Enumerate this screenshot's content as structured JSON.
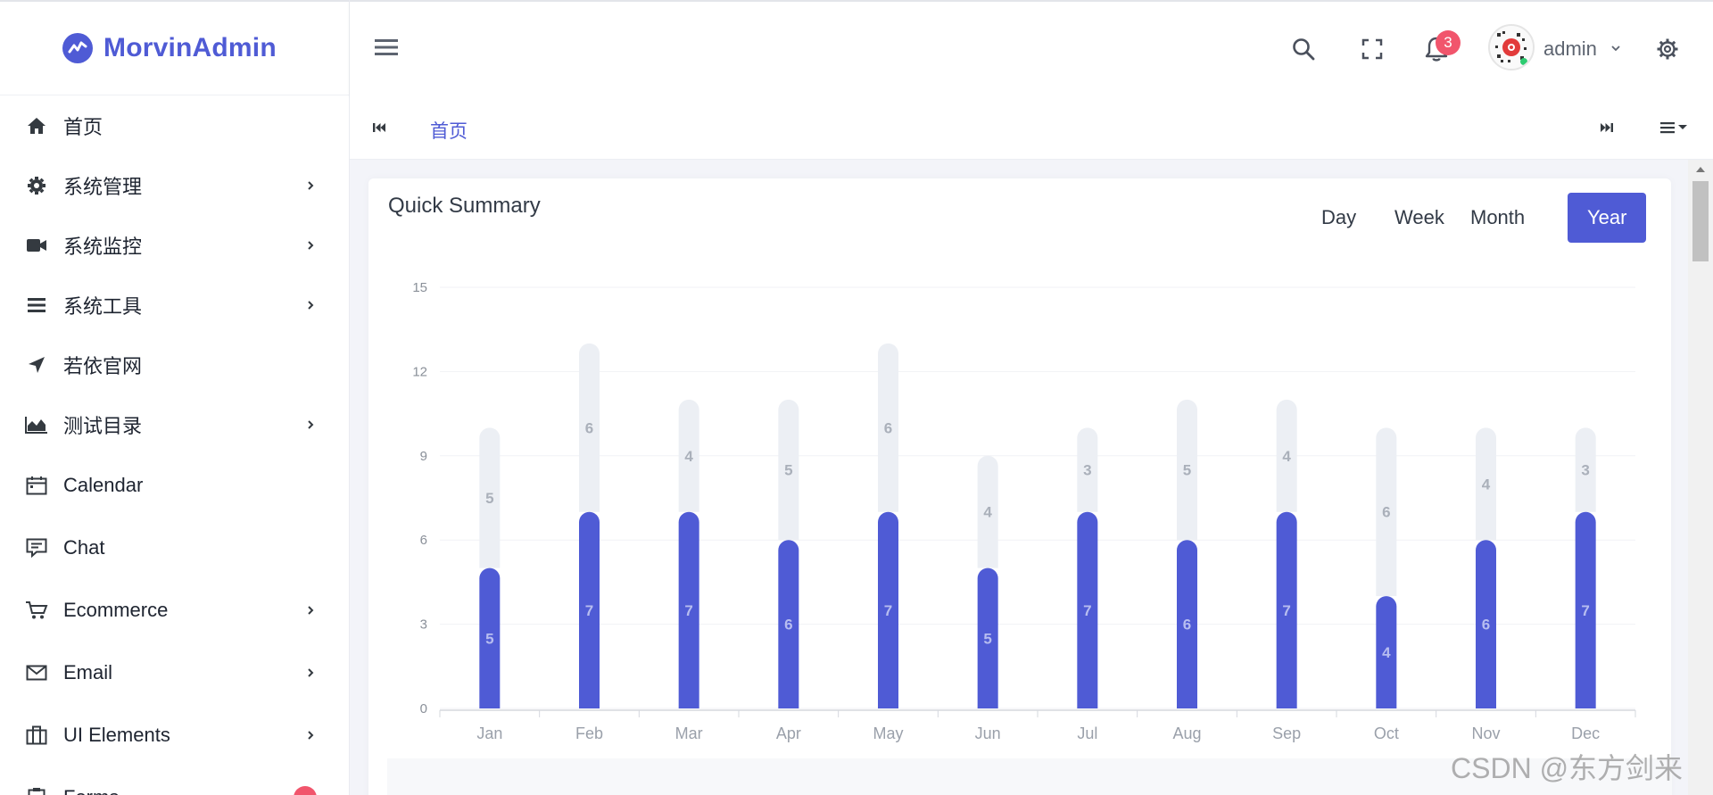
{
  "brand": {
    "name": "MorvinAdmin",
    "color": "#4f5bd5"
  },
  "sidebar": {
    "items": [
      {
        "label": "首页",
        "icon": "home-icon",
        "has_children": false
      },
      {
        "label": "系统管理",
        "icon": "gear-icon",
        "has_children": true
      },
      {
        "label": "系统监控",
        "icon": "video-camera-icon",
        "has_children": true
      },
      {
        "label": "系统工具",
        "icon": "bars-icon",
        "has_children": true
      },
      {
        "label": "若依官网",
        "icon": "location-arrow-icon",
        "has_children": false
      },
      {
        "label": "测试目录",
        "icon": "area-chart-icon",
        "has_children": true
      },
      {
        "label": "Calendar",
        "icon": "calendar-icon",
        "has_children": false
      },
      {
        "label": "Chat",
        "icon": "chat-icon",
        "has_children": false
      },
      {
        "label": "Ecommerce",
        "icon": "cart-icon",
        "has_children": true
      },
      {
        "label": "Email",
        "icon": "mail-icon",
        "has_children": true
      },
      {
        "label": "UI Elements",
        "icon": "briefcase-icon",
        "has_children": true
      },
      {
        "label": "Forms",
        "icon": "clipboard-icon",
        "has_children": false
      }
    ]
  },
  "topbar": {
    "notification_count": "3",
    "user_name": "admin"
  },
  "tabs": {
    "items": [
      {
        "label": "首页",
        "active": true
      }
    ]
  },
  "card": {
    "title": "Quick Summary",
    "periods": [
      "Day",
      "Week",
      "Month",
      "Year"
    ],
    "active_period": "Year"
  },
  "chart_data": {
    "type": "bar",
    "stacked": true,
    "categories": [
      "Jan",
      "Feb",
      "Mar",
      "Apr",
      "May",
      "Jun",
      "Jul",
      "Aug",
      "Sep",
      "Oct",
      "Nov",
      "Dec"
    ],
    "series": [
      {
        "values": [
          5,
          7,
          7,
          6,
          7,
          5,
          7,
          6,
          7,
          4,
          6,
          7
        ],
        "color": "#4f5bd5"
      },
      {
        "values": [
          5,
          6,
          4,
          5,
          6,
          4,
          3,
          5,
          4,
          6,
          4,
          3
        ],
        "color": "#eceff4"
      }
    ],
    "ylim": [
      0,
      15
    ],
    "yticks": [
      0,
      3,
      6,
      9,
      12,
      15
    ],
    "grid": true,
    "data_labels": true,
    "title": "",
    "xlabel": "",
    "ylabel": ""
  },
  "watermark": "CSDN @东方剑来"
}
